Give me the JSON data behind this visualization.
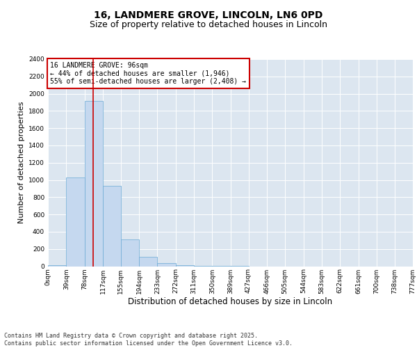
{
  "title_line1": "16, LANDMERE GROVE, LINCOLN, LN6 0PD",
  "title_line2": "Size of property relative to detached houses in Lincoln",
  "xlabel": "Distribution of detached houses by size in Lincoln",
  "ylabel": "Number of detached properties",
  "bar_edges": [
    0,
    39,
    78,
    117,
    155,
    194,
    233,
    272,
    311,
    350,
    389,
    427,
    466,
    505,
    544,
    583,
    622,
    661,
    700,
    738,
    777
  ],
  "bar_heights": [
    10,
    1030,
    1920,
    930,
    310,
    105,
    40,
    10,
    5,
    2,
    1,
    0,
    0,
    0,
    0,
    0,
    0,
    0,
    0,
    0
  ],
  "bar_color": "#c5d8ef",
  "bar_edgecolor": "#6aaad4",
  "vline_x": 96,
  "vline_color": "#cc0000",
  "annotation_text": "16 LANDMERE GROVE: 96sqm\n← 44% of detached houses are smaller (1,946)\n55% of semi-detached houses are larger (2,408) →",
  "annotation_box_color": "#cc0000",
  "ylim": [
    0,
    2400
  ],
  "yticks": [
    0,
    200,
    400,
    600,
    800,
    1000,
    1200,
    1400,
    1600,
    1800,
    2000,
    2200,
    2400
  ],
  "xtick_labels": [
    "0sqm",
    "39sqm",
    "78sqm",
    "117sqm",
    "155sqm",
    "194sqm",
    "233sqm",
    "272sqm",
    "311sqm",
    "350sqm",
    "389sqm",
    "427sqm",
    "466sqm",
    "505sqm",
    "544sqm",
    "583sqm",
    "622sqm",
    "661sqm",
    "700sqm",
    "738sqm",
    "777sqm"
  ],
  "background_color": "#dce6f0",
  "footer_text": "Contains HM Land Registry data © Crown copyright and database right 2025.\nContains public sector information licensed under the Open Government Licence v3.0.",
  "title_fontsize": 10,
  "subtitle_fontsize": 9,
  "tick_fontsize": 6.5,
  "ylabel_fontsize": 8,
  "xlabel_fontsize": 8.5,
  "footer_fontsize": 6,
  "annotation_fontsize": 7
}
